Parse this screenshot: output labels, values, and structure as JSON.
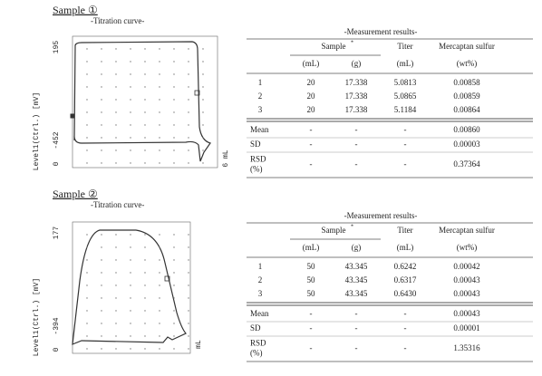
{
  "samples": [
    {
      "title": "Sample ①",
      "curve": {
        "title": "-Titration curve-",
        "y_label": "Level1(Ctrl.) [mV]",
        "y_top": "195",
        "y_mid": "-452",
        "y_zero": "0",
        "x_label": "6 mL"
      },
      "table": {
        "title": "-Measurement results-",
        "sample": "Sample",
        "mark": "*",
        "titer": "Titer",
        "mercaptan": "Mercaptan sulfur",
        "units": [
          "(mL)",
          "(g)",
          "(mL)",
          "(wt%)"
        ],
        "rows": [
          [
            "1",
            "20",
            "17.338",
            "5.0813",
            "0.00858"
          ],
          [
            "2",
            "20",
            "17.338",
            "5.0865",
            "0.00859"
          ],
          [
            "3",
            "20",
            "17.338",
            "5.1184",
            "0.00864"
          ]
        ],
        "stats": [
          {
            "label": [
              "Mean"
            ],
            "cells": [
              "-",
              "-",
              "-",
              "0.00860"
            ]
          },
          {
            "label": [
              "SD"
            ],
            "cells": [
              "-",
              "-",
              "-",
              "0.00003"
            ]
          },
          {
            "label": [
              "RSD",
              "(%)"
            ],
            "cells": [
              "-",
              "-",
              "-",
              "0.37364"
            ]
          }
        ]
      }
    },
    {
      "title": "Sample ②",
      "curve": {
        "title": "-Titration curve-",
        "y_label": "Level1(Ctrl.) [mV]",
        "y_top": "177",
        "y_mid": "-394",
        "y_zero": "0",
        "x_label": "mL"
      },
      "table": {
        "title": "-Measurement results-",
        "sample": "Sample",
        "mark": "*",
        "titer": "Titer",
        "mercaptan": "Mercaptan sulfur",
        "units": [
          "(mL)",
          "(g)",
          "(mL)",
          "(wt%)"
        ],
        "rows": [
          [
            "1",
            "50",
            "43.345",
            "0.6242",
            "0.00042"
          ],
          [
            "2",
            "50",
            "43.345",
            "0.6317",
            "0.00043"
          ],
          [
            "3",
            "50",
            "43.345",
            "0.6430",
            "0.00043"
          ]
        ],
        "stats": [
          {
            "label": [
              "Mean"
            ],
            "cells": [
              "-",
              "-",
              "-",
              "0.00043"
            ]
          },
          {
            "label": [
              "SD"
            ],
            "cells": [
              "-",
              "-",
              "-",
              "0.00001"
            ]
          },
          {
            "label": [
              "RSD",
              "(%)"
            ],
            "cells": [
              "-",
              "-",
              "-",
              "1.35316"
            ]
          }
        ]
      }
    }
  ]
}
